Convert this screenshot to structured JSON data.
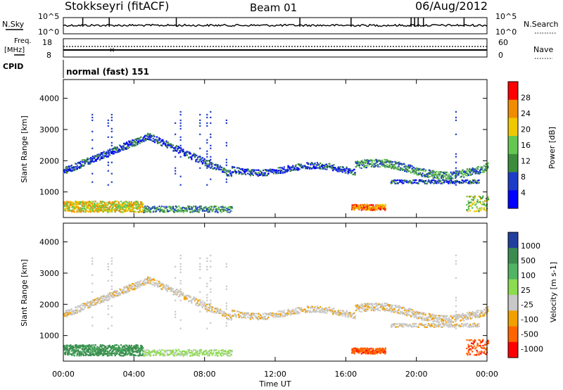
{
  "header": {
    "station": "Stokkseyri (fitACF)",
    "beam": "Beam 01",
    "date": "06/Aug/2012"
  },
  "panels": {
    "nsky": {
      "label": "N.Sky",
      "tick_top": "10^5",
      "tick_bottom": "10^0",
      "right_label": "N.Search",
      "right_tick_top": "10^5",
      "right_tick_bottom": "10^0"
    },
    "freq": {
      "label_line1": "Freq.",
      "label_line2": "[MHz]",
      "tick_top": "18",
      "tick_bottom": "8",
      "right_label": "Nave",
      "right_tick_top": "60",
      "right_tick_bottom": "0"
    },
    "cpid": {
      "label": "CPID",
      "mode": "normal (fast) 151"
    }
  },
  "chart_data": [
    {
      "type": "heatmap",
      "title": "",
      "ylabel": "Slant Range [km]",
      "xlabel": "",
      "ylim": [
        180,
        4600
      ],
      "yticks": [
        "1000",
        "2000",
        "3000",
        "4000"
      ],
      "colorbar": {
        "label": "Power [dB]",
        "ticks": [
          "4",
          "8",
          "12",
          "16",
          "20",
          "24",
          "28"
        ],
        "colors": [
          "#0000ff",
          "#1e3cc8",
          "#3c8c3c",
          "#64c850",
          "#f0c800",
          "#f08c00",
          "#ff0000"
        ]
      }
    },
    {
      "type": "heatmap",
      "title": "",
      "ylabel": "Slant Range [km]",
      "xlabel": "Time UT",
      "ylim": [
        180,
        4600
      ],
      "xlim": [
        "00:00",
        "24:00"
      ],
      "xticks": [
        "00:00",
        "04:00",
        "08:00",
        "12:00",
        "16:00",
        "20:00",
        "00:00"
      ],
      "yticks": [
        "1000",
        "2000",
        "3000",
        "4000"
      ],
      "colorbar": {
        "label": "Velocity [m s-1]",
        "ticks": [
          "1000",
          "500",
          "100",
          "25",
          "-25",
          "-100",
          "-500",
          "-1000"
        ],
        "colors": [
          "#2040a0",
          "#3c8c50",
          "#50b464",
          "#8cdc50",
          "#c8c8c8",
          "#f0a000",
          "#ff6400",
          "#ff0000"
        ]
      }
    }
  ]
}
